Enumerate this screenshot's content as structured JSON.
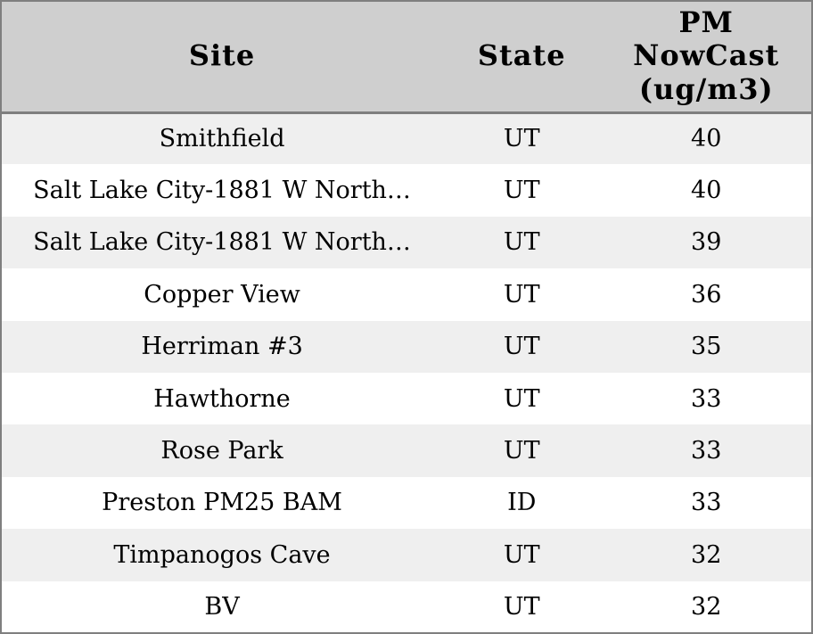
{
  "table": {
    "headers": [
      "Site",
      "State",
      "PM\nNowCast\n(ug/m3)"
    ],
    "rows": [
      {
        "site": "Smithfield",
        "state": "UT",
        "pm": 40
      },
      {
        "site": "Salt Lake City-1881 W North…",
        "state": "UT",
        "pm": 40
      },
      {
        "site": "Salt Lake City-1881 W North…",
        "state": "UT",
        "pm": 39
      },
      {
        "site": "Copper View",
        "state": "UT",
        "pm": 36
      },
      {
        "site": "Herriman #3",
        "state": "UT",
        "pm": 35
      },
      {
        "site": "Hawthorne",
        "state": "UT",
        "pm": 33
      },
      {
        "site": "Rose Park",
        "state": "UT",
        "pm": 33
      },
      {
        "site": "Preston PM25 BAM",
        "state": "ID",
        "pm": 33
      },
      {
        "site": "Timpanogos Cave",
        "state": "UT",
        "pm": 32
      },
      {
        "site": "BV",
        "state": "UT",
        "pm": 32
      }
    ]
  },
  "colors": {
    "header_bg": "#cfcfcf",
    "row_stripe_bg": "#efefef",
    "row_bg": "#ffffff",
    "border": "#7f7f7f",
    "text": "#000000"
  }
}
